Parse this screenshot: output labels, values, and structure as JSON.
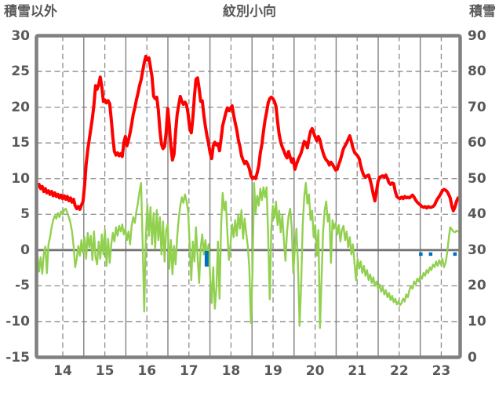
{
  "header": {
    "left_axis_title": "積雪以外",
    "chart_title": "紋別小向",
    "right_axis_title": "積雪"
  },
  "colors": {
    "background": "#ffffff",
    "text": "#595959",
    "border": "#808080",
    "grid_dashed": "#8c8c8c",
    "grid_solid": "#808080",
    "zero_line": "#737373",
    "red_series": "#fe0000",
    "green_series": "#92d050",
    "blue_series": "#0070c0"
  },
  "chart_data": {
    "type": "line",
    "title": "紋別小向",
    "grid": "on",
    "x_axis": {
      "domain_start": 13.875,
      "domain_end": 23.949,
      "tick_labels": [
        "14",
        "15",
        "16",
        "17",
        "18",
        "19",
        "20",
        "21",
        "22",
        "23"
      ],
      "label_centers": [
        14.5,
        15.5,
        16.5,
        17.5,
        18.5,
        19.5,
        20.5,
        21.5,
        22.5,
        23.5
      ],
      "solid_gridlines_at_years": [
        15,
        16,
        17,
        18,
        19,
        20,
        21,
        22,
        23
      ],
      "dashed_gridlines_at_years": [
        14.5,
        15.5,
        16.5,
        17.5,
        18.5,
        19.5,
        20.5,
        21.5,
        22.5,
        23.5
      ]
    },
    "left_axis": {
      "title": "積雪以外",
      "min": -15,
      "max": 30,
      "ticks": [
        30,
        25,
        20,
        15,
        10,
        5,
        0,
        -5,
        -10,
        -15
      ]
    },
    "right_axis": {
      "title": "積雪",
      "min": 0,
      "max": 90,
      "ticks": [
        90,
        80,
        70,
        60,
        50,
        40,
        30,
        20,
        10,
        0
      ]
    },
    "series": [
      {
        "name": "red-line",
        "type": "line",
        "axis": "left",
        "color_key": "red_series",
        "stroke_width": 4,
        "x_start": 13.862,
        "x_step": 0.03731,
        "values": [
          9.6,
          8.9,
          9.2,
          8.6,
          8.9,
          8.2,
          8.6,
          8.0,
          8.3,
          7.8,
          8.2,
          7.6,
          8.0,
          7.5,
          7.8,
          7.3,
          7.7,
          7.2,
          7.6,
          7.1,
          7.5,
          6.9,
          7.3,
          6.7,
          7.1,
          6.2,
          5.8,
          6.1,
          5.7,
          6.3,
          6.8,
          9.0,
          12.0,
          14.0,
          15.5,
          17.0,
          18.5,
          20.4,
          23.0,
          22.5,
          23.2,
          24.2,
          22.8,
          20.8,
          21.0,
          20.6,
          20.9,
          20.5,
          18.3,
          15.8,
          13.8,
          13.3,
          13.6,
          13.2,
          13.5,
          13.1,
          15.0,
          15.9,
          14.6,
          15.4,
          16.4,
          17.6,
          19.0,
          19.9,
          21.0,
          21.9,
          23.0,
          23.8,
          25.0,
          26.2,
          27.1,
          26.6,
          26.9,
          25.6,
          24.2,
          21.5,
          21.2,
          21.4,
          19.6,
          16.8,
          14.8,
          14.2,
          14.5,
          16.5,
          19.8,
          17.5,
          14.5,
          12.6,
          13.4,
          16.5,
          19.0,
          20.3,
          21.5,
          20.8,
          20.4,
          20.7,
          20.3,
          19.0,
          17.0,
          16.4,
          18.5,
          21.5,
          23.9,
          24.1,
          22.6,
          20.8,
          20.9,
          18.9,
          17.3,
          16.0,
          14.9,
          13.6,
          12.8,
          14.6,
          15.1,
          14.7,
          14.9,
          13.9,
          15.6,
          17.4,
          18.3,
          19.2,
          19.9,
          19.5,
          19.8,
          20.2,
          18.9,
          17.8,
          16.8,
          15.4,
          14.5,
          13.2,
          12.6,
          12.1,
          12.4,
          12.0,
          11.4,
          10.4,
          10.0,
          10.2,
          10.0,
          10.8,
          11.8,
          13.6,
          14.8,
          16.6,
          18.2,
          19.3,
          20.6,
          21.2,
          21.4,
          21.2,
          20.8,
          20.1,
          18.0,
          16.2,
          15.1,
          14.4,
          13.9,
          13.3,
          12.9,
          13.8,
          13.0,
          12.3,
          12.8,
          11.3,
          12.0,
          12.6,
          13.1,
          13.6,
          14.4,
          15.2,
          15.0,
          14.3,
          15.6,
          16.6,
          17.0,
          16.4,
          15.8,
          15.3,
          15.9,
          15.4,
          14.4,
          13.6,
          13.0,
          12.6,
          12.4,
          11.9,
          12.3,
          12.0,
          11.6,
          11.2,
          11.3,
          12.0,
          12.6,
          13.4,
          14.2,
          14.6,
          15.0,
          15.5,
          16.0,
          15.2,
          14.3,
          13.7,
          13.4,
          13.2,
          12.8,
          11.8,
          11.0,
          10.4,
          10.2,
          10.4,
          10.5,
          9.8,
          8.9,
          7.8,
          6.9,
          8.2,
          9.6,
          10.2,
          10.3,
          10.4,
          10.2,
          10.5,
          10.0,
          9.4,
          9.2,
          9.4,
          9.3,
          8.2,
          7.5,
          7.3,
          7.2,
          7.4,
          7.2,
          7.5,
          7.3,
          7.4,
          7.3,
          7.5,
          7.7,
          7.4,
          7.0,
          6.7,
          6.5,
          6.3,
          6.1,
          6.0,
          6.1,
          5.9,
          6.1,
          6.0,
          6.0,
          6.1,
          6.3,
          6.8,
          7.2,
          7.5,
          7.9,
          8.3,
          8.5,
          8.4,
          8.2,
          7.8,
          7.3,
          6.2,
          5.5,
          6.0,
          6.8,
          7.3
        ]
      },
      {
        "name": "green-line",
        "type": "line",
        "axis": "left",
        "color_key": "green_series",
        "stroke_width": 2.4,
        "x_start": 13.862,
        "x_step": 0.03731,
        "values": [
          2.2,
          -0.8,
          -3.0,
          -1.0,
          -3.3,
          -0.5,
          0.5,
          -3.2,
          0.8,
          1.8,
          3.2,
          4.2,
          4.8,
          4.4,
          5.2,
          4.6,
          5.4,
          5.0,
          5.6,
          5.8,
          5.2,
          4.6,
          3.8,
          2.6,
          0.6,
          -2.4,
          -1.2,
          0.6,
          -0.8,
          1.4,
          -0.4,
          1.8,
          -1.2,
          2.4,
          0.4,
          2.0,
          -1.4,
          2.6,
          -1.0,
          -2.0,
          1.2,
          -1.2,
          2.2,
          -0.6,
          2.8,
          -2.2,
          1.6,
          -1.8,
          0.8,
          2.4,
          1.2,
          3.2,
          2.0,
          3.4,
          2.6,
          3.6,
          2.2,
          3.0,
          1.4,
          2.6,
          0.8,
          3.4,
          4.6,
          3.8,
          5.4,
          6.6,
          8.2,
          9.4,
          1.0,
          -8.6,
          1.6,
          6.4,
          2.0,
          6.0,
          0.8,
          5.2,
          0.2,
          5.6,
          1.4,
          4.6,
          -0.6,
          4.0,
          -1.6,
          2.8,
          3.6,
          -2.6,
          1.4,
          -3.4,
          0.6,
          -2.0,
          1.8,
          4.4,
          6.2,
          7.4,
          6.6,
          7.8,
          6.8,
          5.4,
          0.6,
          -4.2,
          1.2,
          -1.6,
          3.2,
          -0.8,
          -4.6,
          0.4,
          2.2,
          -0.6,
          1.4,
          -0.9,
          0.8,
          -3.6,
          -7.4,
          -2.4,
          -8.2,
          -5.4,
          1.2,
          -6.8,
          3.4,
          8.0,
          5.6,
          6.8,
          2.4,
          -1.4,
          0.8,
          3.6,
          1.8,
          4.2,
          2.0,
          5.0,
          3.0,
          5.6,
          1.6,
          4.4,
          2.4,
          0.6,
          -2.6,
          -10.2,
          -3.0,
          9.4,
          5.2,
          7.6,
          6.2,
          8.6,
          7.0,
          8.8,
          7.4,
          8.8,
          2.0,
          -6.9,
          3.0,
          6.2,
          4.5,
          6.8,
          3.5,
          5.5,
          2.5,
          4.8,
          1.5,
          -1.5,
          2.5,
          4.8,
          5.8,
          3.2,
          -3.2,
          0.2,
          3.0,
          -2.0,
          -10.6,
          -5.0,
          3.5,
          7.5,
          9.4,
          6.5,
          7.8,
          4.2,
          5.5,
          1.8,
          3.5,
          -0.8,
          2.8,
          -10.9,
          -4.0,
          2.6,
          5.6,
          6.8,
          4.0,
          5.0,
          -1.8,
          4.2,
          3.0,
          3.8,
          2.2,
          3.5,
          1.2,
          2.8,
          3.4,
          1.4,
          2.6,
          0.4,
          1.8,
          -0.6,
          0.8,
          -1.8,
          -4.2,
          -1.2,
          -2.6,
          -1.6,
          -3.2,
          -2.2,
          -3.6,
          -2.8,
          -4.2,
          -3.4,
          -4.6,
          -3.8,
          -5.0,
          -4.4,
          -5.4,
          -4.8,
          -5.8,
          -5.2,
          -6.2,
          -5.6,
          -6.6,
          -6.0,
          -7.0,
          -6.4,
          -7.3,
          -6.8,
          -7.6,
          -7.2,
          -7.7,
          -7.4,
          -6.8,
          -7.2,
          -6.2,
          -6.6,
          -5.6,
          -5.0,
          -5.4,
          -4.4,
          -4.8,
          -4.0,
          -4.4,
          -3.6,
          -4.0,
          -3.2,
          -3.6,
          -2.8,
          -3.2,
          -2.4,
          -2.8,
          -2.0,
          -2.4,
          -1.6,
          -2.2,
          -1.4,
          -2.0,
          -1.2,
          -2.4,
          -1.8,
          -0.5,
          1.5,
          3.2,
          2.9,
          2.6,
          2.5,
          2.7,
          2.6
        ]
      },
      {
        "name": "blue-bars",
        "type": "bar",
        "axis": "left",
        "color_key": "blue_series",
        "bars": [
          {
            "x": 17.921,
            "w": 5.0,
            "v0": 0.0,
            "v1": -2.3
          },
          {
            "x": 23.013,
            "w": 4.5,
            "v0": -0.2,
            "v1": -0.8
          },
          {
            "x": 23.246,
            "w": 4.5,
            "v0": -0.2,
            "v1": -0.8
          },
          {
            "x": 23.824,
            "w": 4.5,
            "v0": -0.2,
            "v1": -0.8
          }
        ]
      }
    ]
  }
}
